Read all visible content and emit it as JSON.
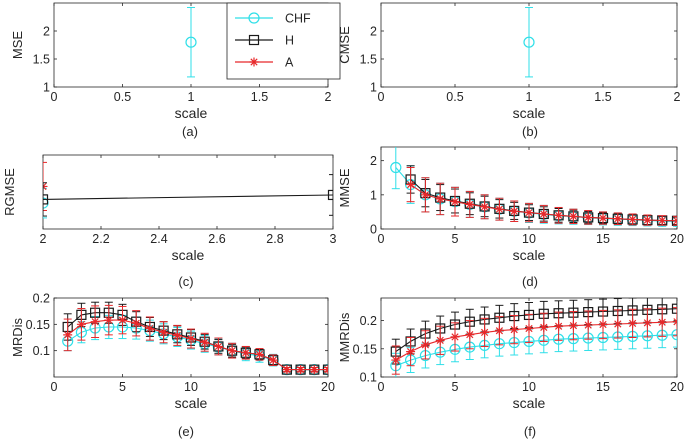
{
  "figure": {
    "legend": [
      {
        "name": "CHF",
        "color": "#2fdfe8",
        "marker": "circle"
      },
      {
        "name": "H",
        "color": "#1a1a1a",
        "marker": "square"
      },
      {
        "name": "A",
        "color": "#e8282a",
        "marker": "star"
      }
    ]
  },
  "chart_data": [
    {
      "id": "a",
      "type": "scatter",
      "caption": "(a)",
      "title": "",
      "xlabel": "scale",
      "ylabel": "MSE",
      "xlim": [
        0,
        2
      ],
      "ylim": [
        1,
        2.5
      ],
      "xticks": [
        0,
        0.5,
        1,
        1.5,
        2
      ],
      "xtick_labels": [
        "0",
        "0.5",
        "1",
        "1.5",
        "2"
      ],
      "yticks": [
        1,
        1.5,
        2
      ],
      "ytick_labels": [
        "1",
        "1.5",
        "2"
      ],
      "series": [
        {
          "name": "CHF",
          "x": [
            1
          ],
          "y": [
            1.8
          ],
          "err": [
            0.62
          ]
        }
      ]
    },
    {
      "id": "b",
      "type": "scatter",
      "caption": "(b)",
      "title": "",
      "xlabel": "scale",
      "ylabel": "CMSE",
      "xlim": [
        0,
        2
      ],
      "ylim": [
        1,
        2.5
      ],
      "xticks": [
        0,
        0.5,
        1,
        1.5,
        2
      ],
      "xtick_labels": [
        "0",
        "0.5",
        "1",
        "1.5",
        "2"
      ],
      "yticks": [
        1,
        1.5,
        2
      ],
      "ytick_labels": [
        "1",
        "1.5",
        "2"
      ],
      "series": [
        {
          "name": "CHF",
          "x": [
            1
          ],
          "y": [
            1.8
          ],
          "err": [
            0.62
          ]
        }
      ]
    },
    {
      "id": "c",
      "type": "line",
      "caption": "(c)",
      "title": "",
      "xlabel": "scale",
      "ylabel": "RGMSE",
      "xlim": [
        2,
        3
      ],
      "ylim": [
        0,
        2
      ],
      "xticks": [
        2,
        2.2,
        2.4,
        2.6,
        2.8,
        3
      ],
      "xtick_labels": [
        "2",
        "2.2",
        "2.4",
        "2.6",
        "2.8",
        "3"
      ],
      "yticks": [],
      "ytick_labels": [],
      "series": [
        {
          "name": "CHF",
          "x": [
            2
          ],
          "y": [
            0.7
          ],
          "err": [
            0.4
          ]
        },
        {
          "name": "A",
          "x": [
            2
          ],
          "y": [
            1.15
          ],
          "err": [
            0.65
          ]
        },
        {
          "name": "H",
          "x": [
            2,
            3
          ],
          "y": [
            0.8,
            0.92
          ],
          "err": [
            0.45,
            0.55
          ]
        }
      ]
    },
    {
      "id": "d",
      "type": "line",
      "caption": "(d)",
      "title": "",
      "xlabel": "scale",
      "ylabel": "MMSE",
      "xlim": [
        0,
        20
      ],
      "ylim": [
        0,
        2.4
      ],
      "xticks": [
        0,
        5,
        10,
        15,
        20
      ],
      "xtick_labels": [
        "0",
        "5",
        "10",
        "15",
        "20"
      ],
      "yticks": [
        0,
        1,
        2
      ],
      "ytick_labels": [
        "0",
        "1",
        "2"
      ],
      "series": [
        {
          "name": "CHF",
          "x": [
            1,
            2,
            3,
            4,
            5,
            6,
            7,
            8,
            9,
            10,
            11,
            12,
            13,
            14,
            15,
            16,
            17,
            18,
            19,
            20
          ],
          "y": [
            1.8,
            1.3,
            1.0,
            0.88,
            0.8,
            0.72,
            0.65,
            0.58,
            0.52,
            0.47,
            0.43,
            0.39,
            0.36,
            0.33,
            0.31,
            0.29,
            0.27,
            0.25,
            0.23,
            0.22
          ],
          "err": [
            0.62,
            0.55,
            0.5,
            0.46,
            0.42,
            0.38,
            0.35,
            0.32,
            0.3,
            0.28,
            0.26,
            0.24,
            0.22,
            0.2,
            0.19,
            0.18,
            0.17,
            0.16,
            0.15,
            0.14
          ]
        },
        {
          "name": "H",
          "x": [
            2,
            3,
            4,
            5,
            6,
            7,
            8,
            9,
            10,
            11,
            12,
            13,
            14,
            15,
            16,
            17,
            18,
            19,
            20
          ],
          "y": [
            1.45,
            1.05,
            0.92,
            0.82,
            0.74,
            0.66,
            0.59,
            0.53,
            0.48,
            0.44,
            0.4,
            0.37,
            0.34,
            0.32,
            0.3,
            0.28,
            0.26,
            0.25,
            0.24
          ],
          "err": [
            0.4,
            0.4,
            0.38,
            0.35,
            0.32,
            0.3,
            0.27,
            0.25,
            0.23,
            0.21,
            0.2,
            0.18,
            0.17,
            0.16,
            0.15,
            0.14,
            0.13,
            0.12,
            0.11
          ]
        },
        {
          "name": "A",
          "x": [
            2,
            3,
            4,
            5,
            6,
            7,
            8,
            9,
            10,
            11,
            12,
            13,
            14,
            15,
            16,
            17,
            18,
            19,
            20
          ],
          "y": [
            1.3,
            1.0,
            0.88,
            0.8,
            0.72,
            0.65,
            0.58,
            0.52,
            0.48,
            0.44,
            0.4,
            0.37,
            0.34,
            0.32,
            0.3,
            0.28,
            0.26,
            0.25,
            0.24
          ],
          "err": [
            0.5,
            0.5,
            0.46,
            0.42,
            0.38,
            0.35,
            0.32,
            0.3,
            0.27,
            0.25,
            0.23,
            0.21,
            0.2,
            0.18,
            0.17,
            0.16,
            0.15,
            0.14,
            0.13
          ]
        }
      ]
    },
    {
      "id": "e",
      "type": "line",
      "caption": "(e)",
      "title": "",
      "xlabel": "scale",
      "ylabel": "MRDis",
      "xlim": [
        0,
        20
      ],
      "ylim": [
        0.05,
        0.2
      ],
      "xticks": [
        0,
        5,
        10,
        15,
        20
      ],
      "xtick_labels": [
        "0",
        "5",
        "10",
        "15",
        "20"
      ],
      "yticks": [
        0.1,
        0.15,
        0.2
      ],
      "ytick_labels": [
        "0.1",
        "0.15",
        "0.2"
      ],
      "series": [
        {
          "name": "CHF",
          "x": [
            1,
            2,
            3,
            4,
            5,
            6,
            7,
            8,
            9,
            10,
            11,
            12,
            13,
            14,
            15,
            16,
            17,
            18,
            19,
            20
          ],
          "y": [
            0.118,
            0.135,
            0.143,
            0.145,
            0.145,
            0.143,
            0.138,
            0.132,
            0.126,
            0.12,
            0.113,
            0.107,
            0.1,
            0.094,
            0.09,
            0.082,
            0.064,
            0.064,
            0.064,
            0.064
          ],
          "err": [
            0.018,
            0.02,
            0.022,
            0.022,
            0.022,
            0.021,
            0.02,
            0.019,
            0.018,
            0.017,
            0.016,
            0.015,
            0.014,
            0.013,
            0.012,
            0.011,
            0.004,
            0.004,
            0.004,
            0.004
          ]
        },
        {
          "name": "H",
          "x": [
            1,
            2,
            3,
            4,
            5,
            6,
            7,
            8,
            9,
            10,
            11,
            12,
            13,
            14,
            15,
            16,
            17,
            18,
            19,
            20
          ],
          "y": [
            0.145,
            0.168,
            0.172,
            0.172,
            0.168,
            0.155,
            0.145,
            0.138,
            0.131,
            0.125,
            0.117,
            0.108,
            0.1,
            0.096,
            0.093,
            0.082,
            0.064,
            0.064,
            0.064,
            0.064
          ],
          "err": [
            0.025,
            0.022,
            0.02,
            0.02,
            0.02,
            0.019,
            0.018,
            0.017,
            0.016,
            0.015,
            0.014,
            0.013,
            0.012,
            0.011,
            0.01,
            0.01,
            0.004,
            0.004,
            0.004,
            0.004
          ]
        },
        {
          "name": "A",
          "x": [
            1,
            2,
            3,
            4,
            5,
            6,
            7,
            8,
            9,
            10,
            11,
            12,
            13,
            14,
            15,
            16,
            17,
            18,
            19,
            20
          ],
          "y": [
            0.13,
            0.15,
            0.155,
            0.158,
            0.158,
            0.152,
            0.142,
            0.135,
            0.129,
            0.123,
            0.116,
            0.108,
            0.1,
            0.096,
            0.093,
            0.082,
            0.064,
            0.064,
            0.064,
            0.064
          ],
          "err": [
            0.03,
            0.03,
            0.03,
            0.028,
            0.026,
            0.024,
            0.022,
            0.02,
            0.019,
            0.018,
            0.017,
            0.016,
            0.014,
            0.012,
            0.011,
            0.01,
            0.004,
            0.004,
            0.004,
            0.004
          ]
        }
      ]
    },
    {
      "id": "f",
      "type": "line",
      "caption": "(f)",
      "title": "",
      "xlabel": "scale",
      "ylabel": "MMRDis",
      "xlim": [
        0,
        20
      ],
      "ylim": [
        0.1,
        0.24
      ],
      "xticks": [
        0,
        5,
        10,
        15,
        20
      ],
      "xtick_labels": [
        "0",
        "5",
        "10",
        "15",
        "20"
      ],
      "yticks": [
        0.1,
        0.15,
        0.2
      ],
      "ytick_labels": [
        "0.1",
        "0.15",
        "0.2"
      ],
      "series": [
        {
          "name": "CHF",
          "x": [
            1,
            2,
            3,
            4,
            5,
            6,
            7,
            8,
            9,
            10,
            11,
            12,
            13,
            14,
            15,
            16,
            17,
            18,
            19,
            20
          ],
          "y": [
            0.12,
            0.13,
            0.138,
            0.144,
            0.149,
            0.153,
            0.156,
            0.159,
            0.161,
            0.163,
            0.165,
            0.167,
            0.168,
            0.169,
            0.17,
            0.171,
            0.172,
            0.173,
            0.174,
            0.175
          ],
          "err": [
            0.022,
            0.022,
            0.022,
            0.022,
            0.022,
            0.022,
            0.022,
            0.022,
            0.022,
            0.022,
            0.022,
            0.022,
            0.022,
            0.022,
            0.022,
            0.022,
            0.022,
            0.022,
            0.022,
            0.022
          ]
        },
        {
          "name": "H",
          "x": [
            1,
            2,
            3,
            4,
            5,
            6,
            7,
            8,
            9,
            10,
            11,
            12,
            13,
            14,
            15,
            16,
            17,
            18,
            19,
            20
          ],
          "y": [
            0.145,
            0.163,
            0.177,
            0.186,
            0.193,
            0.198,
            0.202,
            0.205,
            0.208,
            0.21,
            0.212,
            0.213,
            0.214,
            0.215,
            0.216,
            0.217,
            0.218,
            0.219,
            0.22,
            0.221
          ],
          "err": [
            0.022,
            0.022,
            0.022,
            0.022,
            0.022,
            0.022,
            0.022,
            0.022,
            0.022,
            0.022,
            0.022,
            0.022,
            0.022,
            0.022,
            0.022,
            0.022,
            0.022,
            0.022,
            0.022,
            0.022
          ]
        },
        {
          "name": "A",
          "x": [
            1,
            2,
            3,
            4,
            5,
            6,
            7,
            8,
            9,
            10,
            11,
            12,
            13,
            14,
            15,
            16,
            17,
            18,
            19,
            20
          ],
          "y": [
            0.13,
            0.145,
            0.157,
            0.165,
            0.171,
            0.175,
            0.179,
            0.182,
            0.184,
            0.186,
            0.188,
            0.19,
            0.191,
            0.192,
            0.193,
            0.194,
            0.195,
            0.196,
            0.197,
            0.198
          ],
          "err": [
            0.025,
            0.025,
            0.025,
            0.025,
            0.025,
            0.025,
            0.025,
            0.025,
            0.025,
            0.025,
            0.025,
            0.025,
            0.025,
            0.025,
            0.025,
            0.025,
            0.025,
            0.025,
            0.025,
            0.025
          ]
        }
      ]
    }
  ]
}
